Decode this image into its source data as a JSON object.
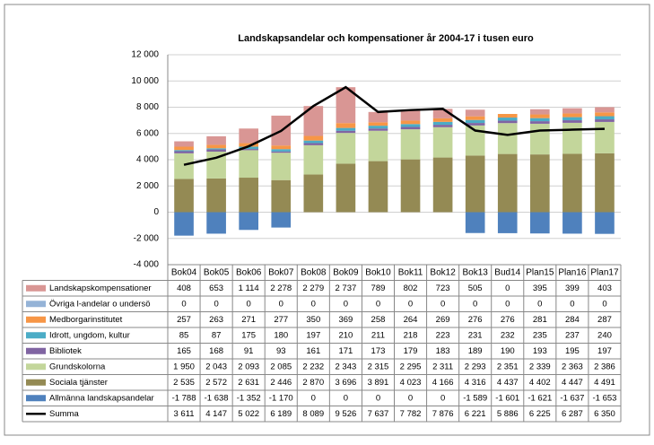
{
  "chart_data": {
    "type": "bar",
    "stacked": true,
    "title": "Landskapsandelar  och kompensationer år 2004-17 i tusen euro",
    "categories": [
      "Bok04",
      "Bok05",
      "Bok06",
      "Bok07",
      "Bok08",
      "Bok09",
      "Bok10",
      "Bok11",
      "Bok12",
      "Bok13",
      "Bud14",
      "Plan15",
      "Plan16",
      "Plan17"
    ],
    "ylim": [
      -4000,
      12000
    ],
    "yticks": [
      {
        "value": -4000,
        "label": "-4 000"
      },
      {
        "value": -2000,
        "label": "-2 000"
      },
      0,
      {
        "value": 2000,
        "label": "2 000"
      },
      {
        "value": 4000,
        "label": "4 000"
      },
      {
        "value": 6000,
        "label": "6 000"
      },
      {
        "value": 8000,
        "label": "8 000"
      },
      {
        "value": 10000,
        "label": "10 000"
      },
      {
        "value": 12000,
        "label": "12 000"
      }
    ],
    "grid": true,
    "series": [
      {
        "name": "Landskapskompensationer",
        "color": "#d99694",
        "values": [
          408,
          653,
          1114,
          2278,
          2279,
          2737,
          789,
          802,
          723,
          505,
          0,
          395,
          399,
          403
        ],
        "value_labels": [
          "408",
          "653",
          "1 114",
          "2 278",
          "2 279",
          "2 737",
          "789",
          "802",
          "723",
          "505",
          "0",
          "395",
          "399",
          "403"
        ]
      },
      {
        "name": "Övriga l-andelar o undersö",
        "color": "#95b3d7",
        "values": [
          0,
          0,
          0,
          0,
          0,
          0,
          0,
          0,
          0,
          0,
          0,
          0,
          0,
          0
        ],
        "value_labels": [
          "0",
          "0",
          "0",
          "0",
          "0",
          "0",
          "0",
          "0",
          "0",
          "0",
          "0",
          "0",
          "0",
          "0"
        ]
      },
      {
        "name": "Medborgarinstitutet",
        "color": "#f79646",
        "values": [
          257,
          263,
          271,
          277,
          350,
          369,
          258,
          264,
          269,
          276,
          276,
          281,
          284,
          287
        ],
        "value_labels": [
          "257",
          "263",
          "271",
          "277",
          "350",
          "369",
          "258",
          "264",
          "269",
          "276",
          "276",
          "281",
          "284",
          "287"
        ]
      },
      {
        "name": "Idrott, ungdom, kultur",
        "color": "#4bacc6",
        "values": [
          85,
          87,
          175,
          180,
          197,
          210,
          211,
          218,
          223,
          231,
          232,
          235,
          237,
          240
        ],
        "value_labels": [
          "85",
          "87",
          "175",
          "180",
          "197",
          "210",
          "211",
          "218",
          "223",
          "231",
          "232",
          "235",
          "237",
          "240"
        ]
      },
      {
        "name": "Bibliotek",
        "color": "#8064a2",
        "values": [
          165,
          168,
          91,
          93,
          161,
          171,
          173,
          179,
          183,
          189,
          190,
          193,
          195,
          197
        ],
        "value_labels": [
          "165",
          "168",
          "91",
          "93",
          "161",
          "171",
          "173",
          "179",
          "183",
          "189",
          "190",
          "193",
          "195",
          "197"
        ]
      },
      {
        "name": "Grundskolorna",
        "color": "#c3d69b",
        "values": [
          1950,
          2043,
          2093,
          2085,
          2232,
          2343,
          2315,
          2295,
          2311,
          2293,
          2351,
          2339,
          2363,
          2386
        ],
        "value_labels": [
          "1 950",
          "2 043",
          "2 093",
          "2 085",
          "2 232",
          "2 343",
          "2 315",
          "2 295",
          "2 311",
          "2 293",
          "2 351",
          "2 339",
          "2 363",
          "2 386"
        ]
      },
      {
        "name": "Sociala tjänster",
        "color": "#948a54",
        "values": [
          2535,
          2572,
          2631,
          2446,
          2870,
          3696,
          3891,
          4023,
          4166,
          4316,
          4437,
          4402,
          4447,
          4491
        ],
        "value_labels": [
          "2 535",
          "2 572",
          "2 631",
          "2 446",
          "2 870",
          "3 696",
          "3 891",
          "4 023",
          "4 166",
          "4 316",
          "4 437",
          "4 402",
          "4 447",
          "4 491"
        ]
      },
      {
        "name": "Allmänna landskapsandelar",
        "color": "#4f81bd",
        "values": [
          -1788,
          -1638,
          -1352,
          -1170,
          0,
          0,
          0,
          0,
          0,
          -1589,
          -1601,
          -1621,
          -1637,
          -1653
        ],
        "value_labels": [
          "-1 788",
          "-1 638",
          "-1 352",
          "-1 170",
          "0",
          "0",
          "0",
          "0",
          "0",
          "-1 589",
          "-1 601",
          "-1 621",
          "-1 637",
          "-1 653"
        ]
      },
      {
        "name": "Summa",
        "color": "#000000",
        "type": "line",
        "values": [
          3611,
          4147,
          5022,
          6189,
          8089,
          9526,
          7637,
          7782,
          7876,
          6221,
          5886,
          6225,
          6287,
          6350
        ],
        "value_labels": [
          "3 611",
          "4 147",
          "5 022",
          "6 189",
          "8 089",
          "9 526",
          "7 637",
          "7 782",
          "7 876",
          "6 221",
          "5 886",
          "6 225",
          "6 287",
          "6 350"
        ]
      }
    ]
  }
}
